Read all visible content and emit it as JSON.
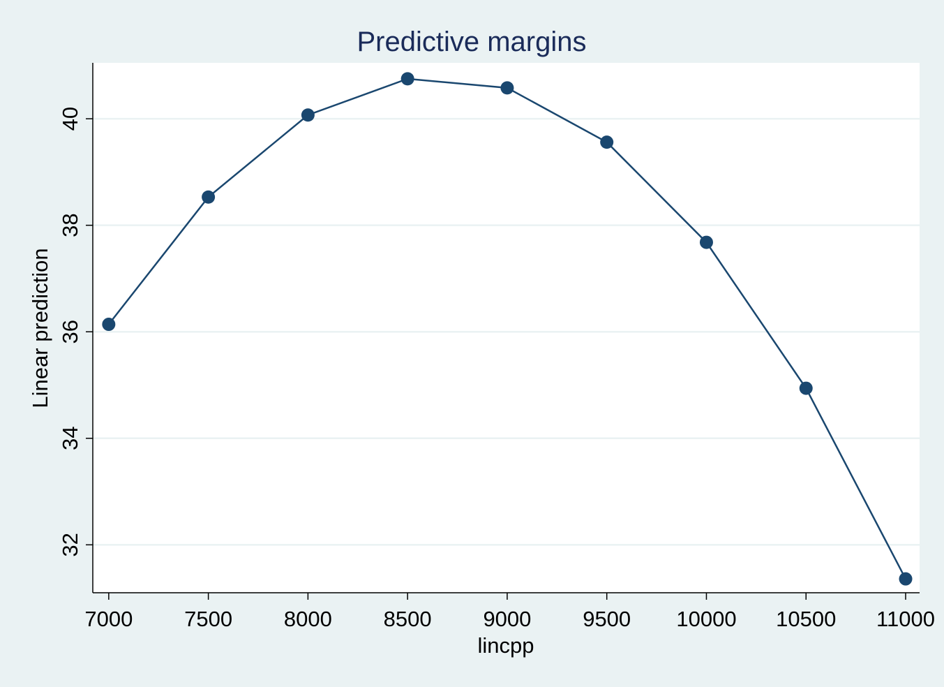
{
  "chart_data": {
    "type": "line",
    "title": "Predictive margins",
    "xlabel": "lincpp",
    "ylabel": "Linear prediction",
    "x": [
      7000,
      7500,
      8000,
      8500,
      9000,
      9500,
      10000,
      10500,
      11000
    ],
    "series": [
      {
        "values": [
          36.14,
          38.53,
          40.07,
          40.75,
          40.58,
          39.56,
          37.68,
          34.94,
          31.36
        ]
      }
    ],
    "xticks": [
      7000,
      7500,
      8000,
      8500,
      9000,
      9500,
      10000,
      10500,
      11000
    ],
    "xtick_labels": [
      "7000",
      "7500",
      "8000",
      "8500",
      "9000",
      "9500",
      "10000",
      "10500",
      "11000"
    ],
    "yticks": [
      32,
      34,
      36,
      38,
      40
    ],
    "ytick_labels": [
      "32",
      "34",
      "36",
      "38",
      "40"
    ],
    "xlim": [
      6920,
      11070
    ],
    "ylim": [
      31.1,
      41.05
    ],
    "grid": true,
    "legend": "none",
    "colors": {
      "series": "#1a476f",
      "plot_background": "#ffffff",
      "page_background": "#eaf2f3",
      "title": "#1a2b59",
      "grid": "#eaf2f3"
    }
  }
}
